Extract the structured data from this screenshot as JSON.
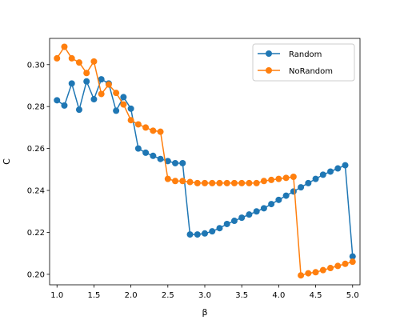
{
  "chart_data": {
    "type": "line",
    "title": "",
    "xlabel": "β",
    "ylabel": "C",
    "xlim": [
      0.9,
      5.1
    ],
    "ylim": [
      0.195,
      0.3125
    ],
    "xticks": [
      1.0,
      1.5,
      2.0,
      2.5,
      3.0,
      3.5,
      4.0,
      4.5,
      5.0
    ],
    "xtick_labels": [
      "1.0",
      "1.5",
      "2.0",
      "2.5",
      "3.0",
      "3.5",
      "4.0",
      "4.5",
      "5.0"
    ],
    "yticks": [
      0.2,
      0.22,
      0.24,
      0.26,
      0.28,
      0.3
    ],
    "ytick_labels": [
      "0.20",
      "0.22",
      "0.24",
      "0.26",
      "0.28",
      "0.30"
    ],
    "grid": false,
    "legend_position": "top-right",
    "x": [
      1.0,
      1.1,
      1.2,
      1.3,
      1.4,
      1.5,
      1.6,
      1.7,
      1.8,
      1.9,
      2.0,
      2.1,
      2.2,
      2.3,
      2.4,
      2.5,
      2.6,
      2.7,
      2.8,
      2.9,
      3.0,
      3.1,
      3.2,
      3.3,
      3.4,
      3.5,
      3.6,
      3.7,
      3.8,
      3.9,
      4.0,
      4.1,
      4.2,
      4.3,
      4.4,
      4.5,
      4.6,
      4.7,
      4.8,
      4.9,
      5.0
    ],
    "series": [
      {
        "name": "Random",
        "color": "#1f77b4",
        "values": [
          0.283,
          0.2805,
          0.291,
          0.2785,
          0.292,
          0.2835,
          0.293,
          0.291,
          0.278,
          0.2845,
          0.279,
          0.26,
          0.258,
          0.2565,
          0.255,
          0.254,
          0.253,
          0.253,
          0.219,
          0.219,
          0.2195,
          0.2205,
          0.222,
          0.224,
          0.2255,
          0.227,
          0.2285,
          0.23,
          0.2315,
          0.2335,
          0.2355,
          0.2375,
          0.2395,
          0.2415,
          0.2435,
          0.2455,
          0.2475,
          0.249,
          0.2505,
          0.252,
          0.2085
        ]
      },
      {
        "name": "NoRandom",
        "color": "#ff7f0e",
        "values": [
          0.303,
          0.3085,
          0.303,
          0.301,
          0.296,
          0.3015,
          0.286,
          0.2905,
          0.2865,
          0.281,
          0.2735,
          0.2715,
          0.27,
          0.2685,
          0.268,
          0.2455,
          0.2445,
          0.2445,
          0.244,
          0.2435,
          0.2435,
          0.2435,
          0.2435,
          0.2435,
          0.2435,
          0.2435,
          0.2435,
          0.2435,
          0.2445,
          0.245,
          0.2455,
          0.246,
          0.2465,
          0.1995,
          0.2005,
          0.201,
          0.202,
          0.203,
          0.204,
          0.205,
          0.206
        ]
      }
    ]
  }
}
